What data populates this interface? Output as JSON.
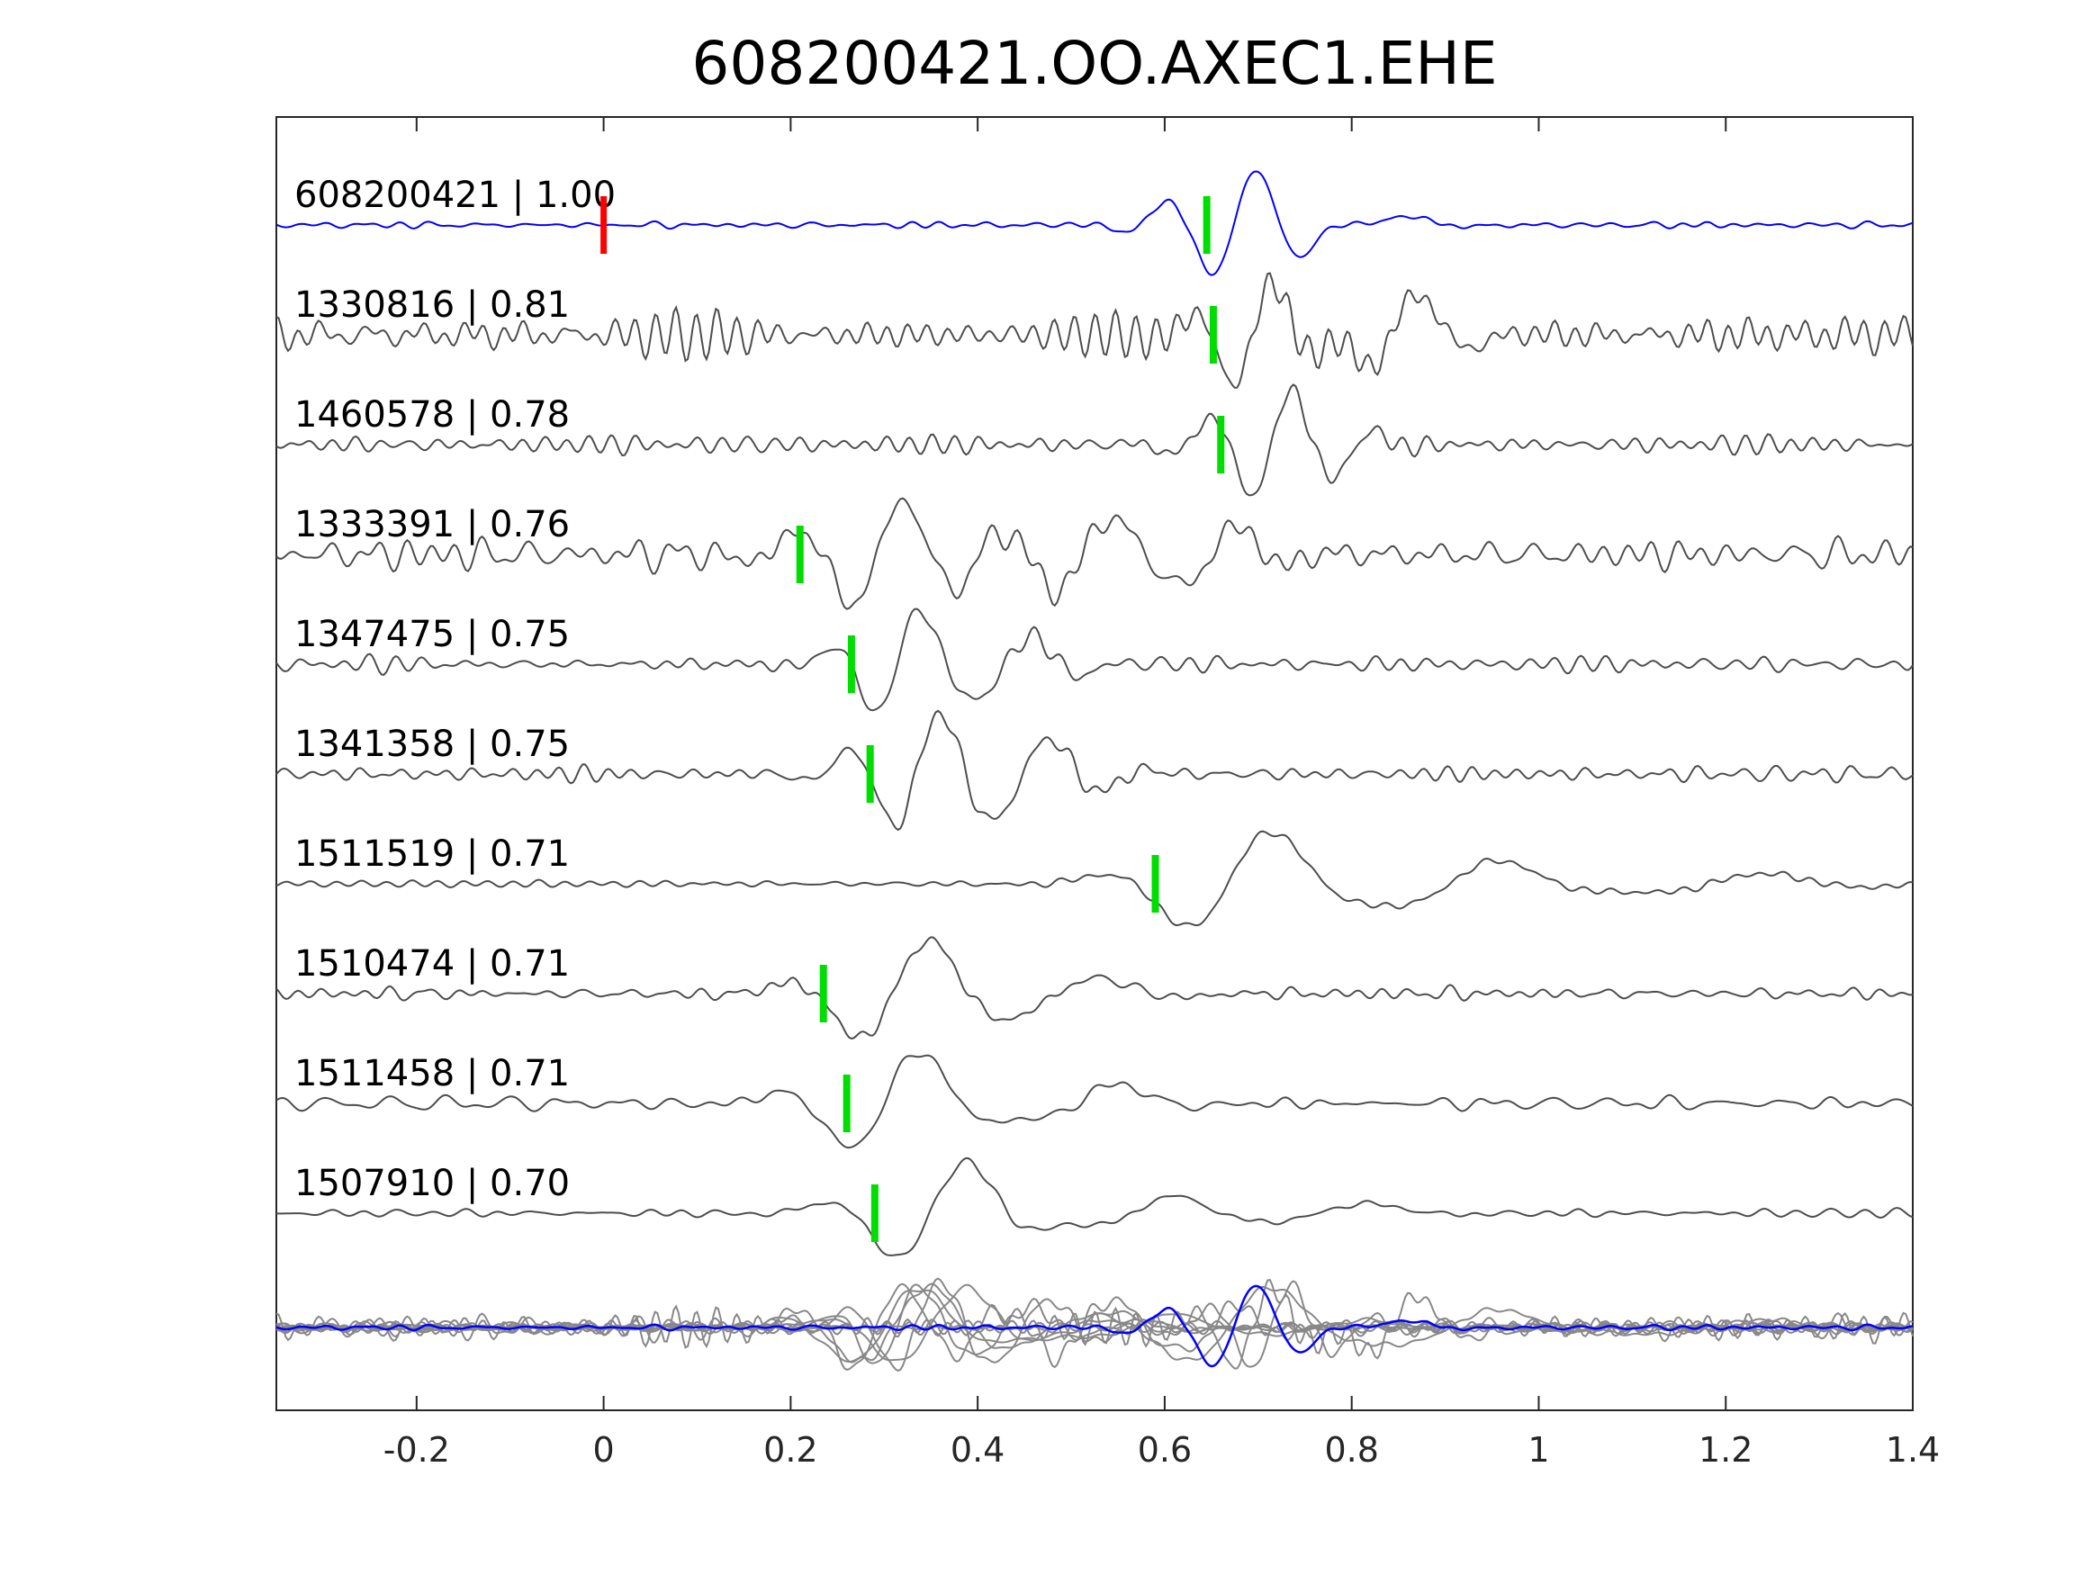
{
  "chart_data": {
    "type": "line",
    "title": "608200421.OO.AXEC1.EHE",
    "xlabel": "",
    "ylabel": "",
    "xlim": [
      -0.35,
      1.4
    ],
    "xticks": [
      -0.2,
      0,
      0.2,
      0.4,
      0.6,
      0.8,
      1,
      1.2,
      1.4
    ],
    "xtick_labels": [
      "-0.2",
      "0",
      "0.2",
      "0.4",
      "0.6",
      "0.8",
      "1",
      "1.2",
      "1.4"
    ],
    "grid": false,
    "legend": "none",
    "colors": {
      "template": "#0000ff",
      "neighbor": "#4d4d4d",
      "stack": "#888888",
      "origin_marker": "#ff0000",
      "pick_marker": "#00dd00",
      "axes": "#262626"
    },
    "traces": [
      {
        "label": "608200421 | 1.00",
        "pick": 0.645,
        "reference": true,
        "wavelets": [
          {
            "t": 0.68,
            "a": 1.0,
            "f": 10.0,
            "w": 0.06
          },
          {
            "t": 0.83,
            "a": 0.2,
            "f": 6.0,
            "w": 0.05
          }
        ],
        "noise": 0.06,
        "noise_f": 30
      },
      {
        "label": "1330816 | 0.81",
        "pick": 0.652,
        "wavelets": [
          {
            "t": 0.7,
            "a": 1.0,
            "f": 11.0,
            "w": 0.05
          },
          {
            "t": 0.85,
            "a": 0.8,
            "f": 8.0,
            "w": 0.05
          }
        ],
        "noise": 0.38,
        "noise_f": 34
      },
      {
        "label": "1460578 | 0.78",
        "pick": 0.66,
        "wavelets": [
          {
            "t": 0.72,
            "a": 1.0,
            "f": 11.0,
            "w": 0.06
          }
        ],
        "noise": 0.18,
        "noise_f": 32
      },
      {
        "label": "1333391 | 0.76",
        "pick": 0.21,
        "wavelets": [
          {
            "t": 0.3,
            "a": 1.0,
            "f": 8.5,
            "w": 0.07
          },
          {
            "t": 0.52,
            "a": 0.7,
            "f": 8.0,
            "w": 0.07
          },
          {
            "t": 0.66,
            "a": 0.5,
            "f": 9.0,
            "w": 0.05
          }
        ],
        "noise": 0.28,
        "noise_f": 30
      },
      {
        "label": "1347475 | 0.75",
        "pick": 0.265,
        "wavelets": [
          {
            "t": 0.32,
            "a": 1.0,
            "f": 10.0,
            "w": 0.05
          },
          {
            "t": 0.44,
            "a": 0.55,
            "f": 9.0,
            "w": 0.05
          }
        ],
        "noise": 0.15,
        "noise_f": 30
      },
      {
        "label": "1341358 | 0.75",
        "pick": 0.285,
        "wavelets": [
          {
            "t": 0.34,
            "a": 1.0,
            "f": 10.0,
            "w": 0.06
          },
          {
            "t": 0.46,
            "a": 0.65,
            "f": 9.0,
            "w": 0.06
          }
        ],
        "noise": 0.15,
        "noise_f": 30
      },
      {
        "label": "1511519 | 0.71",
        "pick": 0.59,
        "wavelets": [
          {
            "t": 0.68,
            "a": 1.0,
            "f": 5.0,
            "w": 0.08
          },
          {
            "t": 0.92,
            "a": 0.45,
            "f": 4.5,
            "w": 0.09
          },
          {
            "t": 1.2,
            "a": 0.2,
            "f": 4.0,
            "w": 0.1
          }
        ],
        "noise": 0.06,
        "noise_f": 26
      },
      {
        "label": "1510474 | 0.71",
        "pick": 0.235,
        "wavelets": [
          {
            "t": 0.32,
            "a": 1.0,
            "f": 6.0,
            "w": 0.07
          },
          {
            "t": 0.5,
            "a": 0.3,
            "f": 5.0,
            "w": 0.07
          }
        ],
        "noise": 0.12,
        "noise_f": 28
      },
      {
        "label": "1511458 | 0.71",
        "pick": 0.26,
        "wavelets": [
          {
            "t": 0.31,
            "a": 1.0,
            "f": 6.0,
            "w": 0.07
          },
          {
            "t": 0.52,
            "a": 0.4,
            "f": 5.0,
            "w": 0.06
          }
        ],
        "noise": 0.12,
        "noise_f": 28
      },
      {
        "label": "1507910 | 0.70",
        "pick": 0.29,
        "wavelets": [
          {
            "t": 0.36,
            "a": 1.0,
            "f": 6.0,
            "w": 0.07
          },
          {
            "t": 0.58,
            "a": 0.35,
            "f": 5.0,
            "w": 0.06
          },
          {
            "t": 0.78,
            "a": 0.2,
            "f": 4.0,
            "w": 0.07
          }
        ],
        "noise": 0.08,
        "noise_f": 26
      }
    ],
    "origin_marker": 0.0
  }
}
